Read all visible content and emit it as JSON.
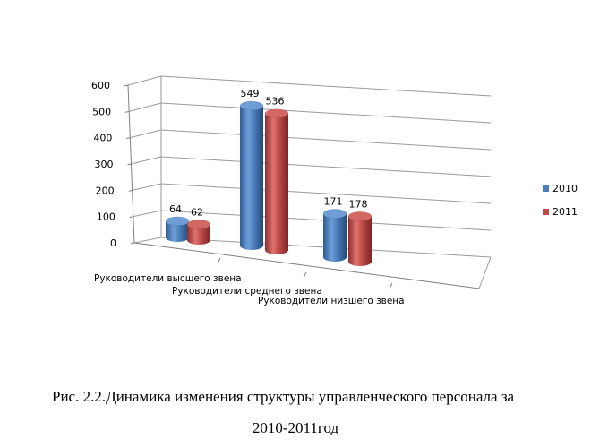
{
  "chart_data": {
    "type": "bar",
    "style": "3d-cylinder",
    "categories": [
      "Руководители высшего звена",
      "Руководители среднего звена",
      "Руководители низшего звена"
    ],
    "series": [
      {
        "name": "2010",
        "color": "#4a7ebb",
        "values": [
          64,
          549,
          171
        ]
      },
      {
        "name": "2011",
        "color": "#be4b48",
        "values": [
          62,
          536,
          178
        ]
      }
    ],
    "ylim": [
      0,
      600
    ],
    "yticks": [
      "0",
      "100",
      "200",
      "300",
      "400",
      "500",
      "600"
    ],
    "data_labels": [
      [
        "64",
        "549",
        "171"
      ],
      [
        "62",
        "536",
        "178"
      ]
    ],
    "grid": true,
    "legend": "right"
  },
  "caption": {
    "line1": "Рис. 2.2.Динамика изменения структуры управленческого персонала за",
    "line2": "2010-2011год"
  }
}
